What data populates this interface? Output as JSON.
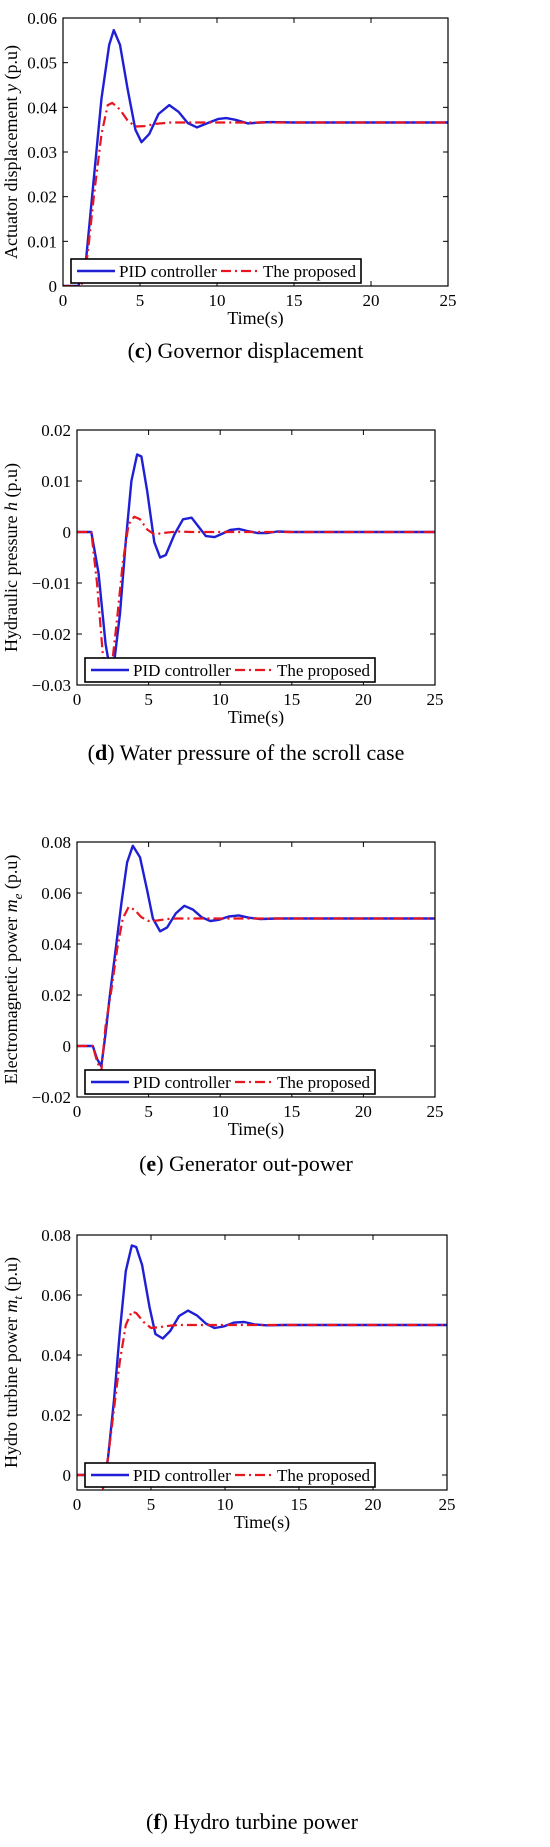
{
  "colors": {
    "pid": "#1f1fd6",
    "proposed": "#e8141e",
    "frame": "#000000",
    "background": "#ffffff"
  },
  "chart_data": [
    {
      "type": "line",
      "caption_letter": "c",
      "caption_rest": " Governor displacement",
      "xlabel": "Time(s)",
      "ylabel_main": "Actuator displacement ",
      "ylabel_var": "y",
      "ylabel_sub": "",
      "ylabel_tail": " (p.u)",
      "xlim": [
        0,
        25
      ],
      "ylim": [
        0,
        0.06
      ],
      "xticks": [
        "0",
        "5",
        "10",
        "15",
        "20",
        "25"
      ],
      "yticks": [
        "0",
        "0.01",
        "0.02",
        "0.03",
        "0.04",
        "0.05",
        "0.06"
      ],
      "legend": {
        "placement": "bottom-left",
        "entries": [
          "PID controller",
          "The proposed"
        ]
      },
      "series": [
        {
          "name": "PID controller",
          "style": "solid",
          "x": [
            0,
            1.0,
            1.5,
            2.0,
            2.5,
            3.0,
            3.3,
            3.7,
            4.2,
            4.7,
            5.1,
            5.6,
            6.2,
            6.9,
            7.5,
            8.1,
            8.7,
            9.4,
            10.1,
            10.6,
            11.2,
            12.0,
            12.8,
            13.5,
            15,
            17,
            20,
            25
          ],
          "y": [
            0,
            0,
            0.006,
            0.024,
            0.042,
            0.054,
            0.0573,
            0.054,
            0.044,
            0.035,
            0.0322,
            0.034,
            0.0385,
            0.0405,
            0.039,
            0.0365,
            0.0355,
            0.0365,
            0.0374,
            0.0376,
            0.0372,
            0.0364,
            0.0366,
            0.0367,
            0.0366,
            0.0366,
            0.0366,
            0.0366
          ]
        },
        {
          "name": "The proposed",
          "style": "dashdot",
          "x": [
            0,
            1.2,
            1.6,
            2.0,
            2.5,
            2.9,
            3.2,
            3.7,
            4.2,
            4.7,
            5.3,
            6.0,
            7.0,
            8.0,
            10,
            15,
            20,
            25
          ],
          "y": [
            0,
            0,
            0.007,
            0.02,
            0.034,
            0.0405,
            0.041,
            0.0395,
            0.037,
            0.0357,
            0.0358,
            0.0363,
            0.0366,
            0.0366,
            0.0366,
            0.0366,
            0.0366,
            0.0366
          ]
        }
      ]
    },
    {
      "type": "line",
      "caption_letter": "d",
      "caption_rest": " Water pressure of the scroll case",
      "xlabel": "Time(s)",
      "ylabel_main": "Hydraulic pressure ",
      "ylabel_var": "h",
      "ylabel_sub": "",
      "ylabel_tail": " (p.u)",
      "xlim": [
        0,
        25
      ],
      "ylim": [
        -0.03,
        0.02
      ],
      "xticks": [
        "0",
        "5",
        "10",
        "15",
        "20",
        "25"
      ],
      "yticks": [
        "−0.03",
        "−0.02",
        "−0.01",
        "0",
        "0.01",
        "0.02"
      ],
      "legend": {
        "placement": "bottom-left",
        "entries": [
          "PID controller",
          "The proposed"
        ]
      },
      "series": [
        {
          "name": "PID controller",
          "style": "solid",
          "x": [
            0,
            1.0,
            1.5,
            2.0,
            2.3,
            2.6,
            3.0,
            3.4,
            3.8,
            4.2,
            4.5,
            4.9,
            5.4,
            5.8,
            6.2,
            6.8,
            7.4,
            8.0,
            8.5,
            9.0,
            9.6,
            10.1,
            10.7,
            11.3,
            11.9,
            12.6,
            13.3,
            14.0,
            15,
            17,
            20,
            25
          ],
          "y": [
            0,
            0,
            -0.008,
            -0.022,
            -0.0268,
            -0.0255,
            -0.016,
            -0.002,
            0.01,
            0.0152,
            0.0148,
            0.008,
            -0.002,
            -0.005,
            -0.0045,
            -0.0005,
            0.0025,
            0.0028,
            0.001,
            -0.0008,
            -0.001,
            -0.0004,
            0.0004,
            0.0006,
            0.0002,
            -0.0002,
            -0.0002,
            0.0001,
            0,
            0,
            0,
            0
          ]
        },
        {
          "name": "The proposed",
          "style": "dashdot",
          "x": [
            0,
            1.0,
            1.4,
            1.8,
            2.1,
            2.4,
            2.8,
            3.2,
            3.6,
            4.0,
            4.4,
            4.9,
            5.4,
            6.0,
            7.0,
            8.0,
            10,
            15,
            20,
            25
          ],
          "y": [
            0,
            0,
            -0.01,
            -0.024,
            -0.0282,
            -0.027,
            -0.017,
            -0.006,
            0.0015,
            0.003,
            0.0025,
            0.0005,
            -0.0005,
            -0.0002,
            0.0001,
            0,
            0,
            0,
            0,
            0
          ]
        }
      ]
    },
    {
      "type": "line",
      "caption_letter": "e",
      "caption_rest": " Generator out-power",
      "xlabel": "Time(s)",
      "ylabel_main": "Electromagnetic power ",
      "ylabel_var": "m",
      "ylabel_sub": "e",
      "ylabel_tail": " (p.u)",
      "xlim": [
        0,
        25
      ],
      "ylim": [
        -0.02,
        0.08
      ],
      "xticks": [
        "0",
        "5",
        "10",
        "15",
        "20",
        "25"
      ],
      "yticks": [
        "−0.02",
        "0",
        "0.02",
        "0.04",
        "0.06",
        "0.08"
      ],
      "legend": {
        "placement": "bottom-left",
        "entries": [
          "PID controller",
          "The proposed"
        ]
      },
      "series": [
        {
          "name": "PID controller",
          "style": "solid",
          "x": [
            0,
            1.1,
            1.4,
            1.7,
            2.0,
            2.3,
            2.7,
            3.1,
            3.5,
            3.9,
            4.4,
            4.9,
            5.3,
            5.8,
            6.3,
            6.9,
            7.5,
            8.1,
            8.7,
            9.3,
            9.9,
            10.6,
            11.3,
            12.0,
            12.8,
            14,
            16,
            20,
            25
          ],
          "y": [
            0,
            0,
            -0.005,
            -0.008,
            0.005,
            0.02,
            0.038,
            0.056,
            0.072,
            0.0785,
            0.074,
            0.061,
            0.05,
            0.045,
            0.0465,
            0.052,
            0.055,
            0.0535,
            0.0505,
            0.049,
            0.0495,
            0.0508,
            0.0512,
            0.0503,
            0.0498,
            0.05,
            0.05,
            0.05,
            0.05
          ]
        },
        {
          "name": "The proposed",
          "style": "dashdot",
          "x": [
            0,
            1.1,
            1.4,
            1.7,
            2.0,
            2.4,
            2.8,
            3.2,
            3.6,
            4.0,
            4.5,
            5.0,
            5.6,
            6.3,
            7.0,
            8.0,
            10,
            15,
            20,
            25
          ],
          "y": [
            0,
            0,
            -0.006,
            -0.01,
            0.008,
            0.022,
            0.038,
            0.05,
            0.0545,
            0.0535,
            0.0505,
            0.049,
            0.0492,
            0.0498,
            0.05,
            0.05,
            0.05,
            0.05,
            0.05,
            0.05
          ]
        }
      ]
    },
    {
      "type": "line",
      "caption_letter": "f",
      "caption_rest": " Hydro turbine power",
      "xlabel": "Time(s)",
      "ylabel_main": "Hydro turbine power ",
      "ylabel_var": "m",
      "ylabel_sub": "t",
      "ylabel_tail": " (p.u)",
      "xlim": [
        0,
        25
      ],
      "ylim": [
        -0.005,
        0.08
      ],
      "xticks": [
        "0",
        "5",
        "10",
        "15",
        "20",
        "25"
      ],
      "yticks": [
        "0",
        "0.02",
        "0.04",
        "0.06",
        "0.08"
      ],
      "legend": {
        "placement": "bottom-left",
        "entries": [
          "PID controller",
          "The proposed"
        ]
      },
      "series": [
        {
          "name": "PID controller",
          "style": "solid",
          "x": [
            0,
            1.4,
            1.8,
            2.1,
            2.5,
            2.9,
            3.3,
            3.7,
            4.0,
            4.4,
            4.9,
            5.3,
            5.8,
            6.3,
            6.9,
            7.5,
            8.1,
            8.7,
            9.3,
            9.9,
            10.6,
            11.3,
            12.0,
            12.8,
            14,
            16,
            20,
            25
          ],
          "y": [
            0,
            0,
            -0.004,
            0.006,
            0.025,
            0.048,
            0.068,
            0.0765,
            0.076,
            0.07,
            0.056,
            0.047,
            0.0455,
            0.048,
            0.053,
            0.0548,
            0.0532,
            0.0505,
            0.049,
            0.0495,
            0.0508,
            0.051,
            0.0502,
            0.0499,
            0.05,
            0.05,
            0.05,
            0.05
          ]
        },
        {
          "name": "The proposed",
          "style": "dashdot",
          "x": [
            0,
            1.4,
            1.8,
            2.1,
            2.5,
            2.9,
            3.3,
            3.7,
            4.0,
            4.5,
            5.0,
            5.6,
            6.3,
            7.0,
            8.0,
            10,
            15,
            20,
            25
          ],
          "y": [
            0,
            0,
            -0.005,
            0.006,
            0.022,
            0.038,
            0.05,
            0.0545,
            0.054,
            0.051,
            0.049,
            0.0493,
            0.0498,
            0.05,
            0.05,
            0.05,
            0.05,
            0.05,
            0.05
          ]
        }
      ]
    }
  ]
}
